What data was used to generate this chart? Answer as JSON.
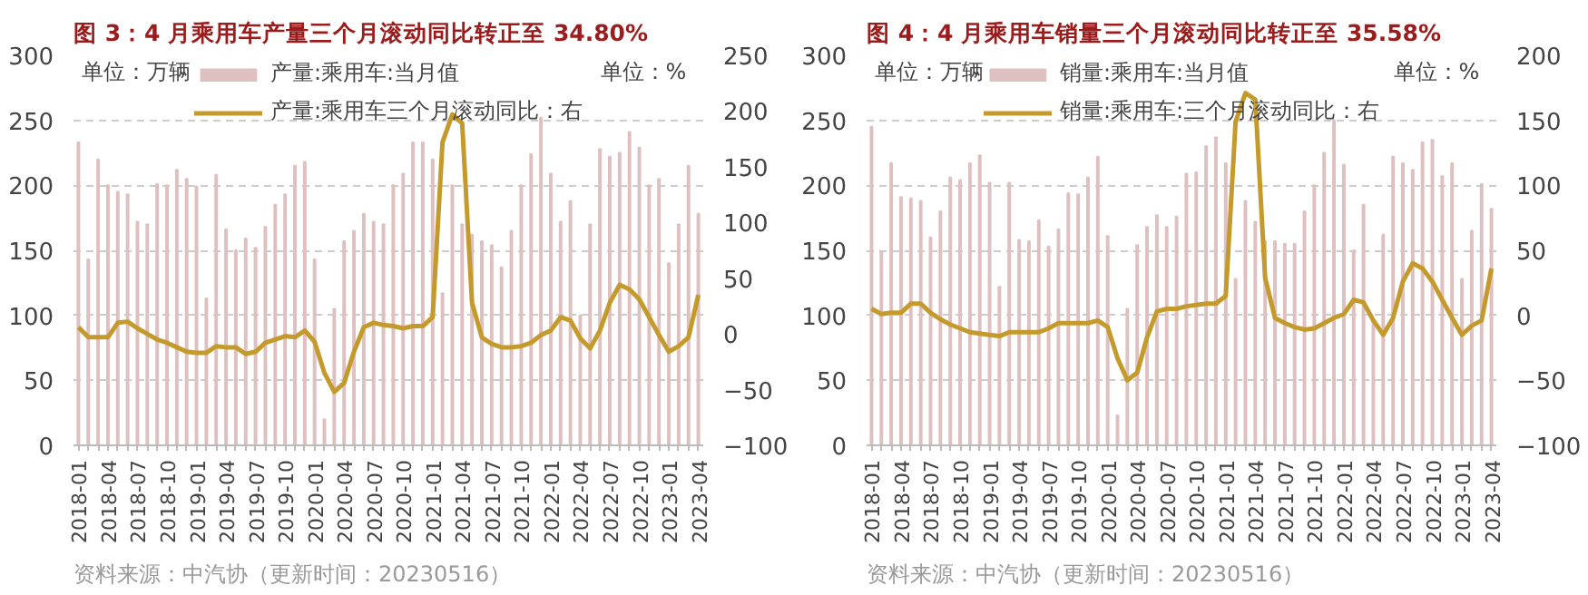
{
  "chart_data": [
    {
      "type": "bar",
      "title": "图 3：4 月乘用车产量三个月滚动同比转正至 34.80%",
      "ylabel": "单位：万辆",
      "y2label": "单位：%",
      "categories": [
        "2018-01",
        null,
        null,
        "2018-04",
        null,
        null,
        "2018-07",
        null,
        null,
        "2018-10",
        null,
        null,
        "2019-01",
        null,
        null,
        "2019-04",
        null,
        null,
        "2019-07",
        null,
        null,
        "2019-10",
        null,
        null,
        "2020-01",
        null,
        null,
        "2020-04",
        null,
        null,
        "2020-07",
        null,
        null,
        "2020-10",
        null,
        null,
        "2021-01",
        null,
        null,
        "2021-04",
        null,
        null,
        "2021-07",
        null,
        null,
        "2021-10",
        null,
        null,
        "2022-01",
        null,
        null,
        "2022-04",
        null,
        null,
        "2022-07",
        null,
        null,
        "2022-10",
        null,
        null,
        "2023-01",
        null,
        null,
        "2023-04"
      ],
      "series": [
        {
          "name": "产量:乘用车:当月值",
          "color": "#dfc0c0",
          "values": [
            233,
            143,
            220,
            200,
            195,
            193,
            172,
            170,
            201,
            200,
            212,
            205,
            199,
            113,
            208,
            166,
            150,
            159,
            152,
            168,
            185,
            193,
            215,
            218,
            143,
            20,
            105,
            157,
            165,
            178,
            172,
            170,
            200,
            209,
            233,
            233,
            220,
            117,
            200,
            170,
            162,
            157,
            154,
            137,
            165,
            200,
            224,
            252,
            209,
            172,
            188,
            100,
            170,
            228,
            222,
            225,
            241,
            229,
            200,
            205,
            140,
            170,
            215,
            178
          ]
        },
        {
          "name": "产量:乘用车三个月滚动同比：右",
          "type": "line",
          "axis": "y2",
          "color": "#c49a2c",
          "values": [
            6,
            -3,
            -3,
            -3,
            10,
            11,
            5,
            0,
            -5,
            -8,
            -12,
            -16,
            -17,
            -17,
            -11,
            -12,
            -12,
            -18,
            -16,
            -8,
            -5,
            -2,
            -3,
            3,
            -7,
            -35,
            -52,
            -44,
            -16,
            6,
            10,
            8,
            7,
            5,
            7,
            7,
            15,
            172,
            197,
            189,
            28,
            -3,
            -9,
            -12,
            -12,
            -11,
            -8,
            -1,
            3,
            15,
            12,
            -4,
            -13,
            3,
            28,
            44,
            40,
            31,
            15,
            -1,
            -16,
            -11,
            -3,
            35
          ]
        }
      ],
      "ylim": [
        0,
        300
      ],
      "yticks": [
        0,
        50,
        100,
        150,
        200,
        250,
        300
      ],
      "y2lim": [
        -100,
        250
      ],
      "y2ticks": [
        -100,
        -50,
        0,
        50,
        100,
        150,
        200,
        250
      ],
      "grid": "y",
      "legend": "top",
      "annotations": [
        "资料来源：中汽协（更新时间：20230516）"
      ]
    },
    {
      "type": "bar",
      "title": "图 4：4 月乘用车销量三个月滚动同比转正至 35.58%",
      "ylabel": "单位：万辆",
      "y2label": "单位：%",
      "categories": [
        "2018-01",
        null,
        null,
        "2018-04",
        null,
        null,
        "2018-07",
        null,
        null,
        "2018-10",
        null,
        null,
        "2019-01",
        null,
        null,
        "2019-04",
        null,
        null,
        "2019-07",
        null,
        null,
        "2019-10",
        null,
        null,
        "2020-01",
        null,
        null,
        "2020-04",
        null,
        null,
        "2020-07",
        null,
        null,
        "2020-10",
        null,
        null,
        "2021-01",
        null,
        null,
        "2021-04",
        null,
        null,
        "2021-07",
        null,
        null,
        "2021-10",
        null,
        null,
        "2022-01",
        null,
        null,
        "2022-04",
        null,
        null,
        "2022-07",
        null,
        null,
        "2022-10",
        null,
        null,
        "2023-01",
        null,
        null,
        "2023-04"
      ],
      "series": [
        {
          "name": "销量:乘用车:当月值",
          "color": "#dfc0c0",
          "values": [
            245,
            149,
            217,
            191,
            190,
            188,
            160,
            180,
            206,
            204,
            217,
            223,
            202,
            122,
            202,
            158,
            157,
            173,
            153,
            166,
            194,
            193,
            206,
            222,
            161,
            23,
            105,
            154,
            168,
            177,
            168,
            176,
            209,
            210,
            230,
            237,
            217,
            128,
            188,
            172,
            157,
            157,
            155,
            155,
            180,
            200,
            225,
            250,
            216,
            150,
            185,
            97,
            162,
            222,
            217,
            212,
            233,
            235,
            207,
            217,
            128,
            165,
            201,
            182
          ]
        },
        {
          "name": "销量:乘用车:三个月滚动同比：右",
          "type": "line",
          "axis": "y2",
          "color": "#c49a2c",
          "values": [
            5,
            1,
            2,
            2,
            9,
            9,
            2,
            -3,
            -7,
            -10,
            -13,
            -14,
            -15,
            -16,
            -13,
            -13,
            -13,
            -13,
            -10,
            -6,
            -6,
            -6,
            -6,
            -4,
            -9,
            -33,
            -50,
            -44,
            -17,
            3,
            5,
            5,
            7,
            8,
            9,
            9,
            15,
            149,
            171,
            166,
            29,
            -2,
            -6,
            -9,
            -11,
            -10,
            -6,
            -2,
            1,
            12,
            10,
            -4,
            -15,
            -2,
            26,
            40,
            36,
            26,
            12,
            -2,
            -15,
            -8,
            -4,
            36
          ]
        }
      ],
      "ylim": [
        0,
        300
      ],
      "yticks": [
        0,
        50,
        100,
        150,
        200,
        250,
        300
      ],
      "y2lim": [
        -100,
        200
      ],
      "y2ticks": [
        -100,
        -50,
        0,
        50,
        100,
        150,
        200
      ],
      "grid": "y",
      "legend": "top",
      "annotations": [
        "资料来源：中汽协（更新时间：20230516）"
      ]
    }
  ]
}
